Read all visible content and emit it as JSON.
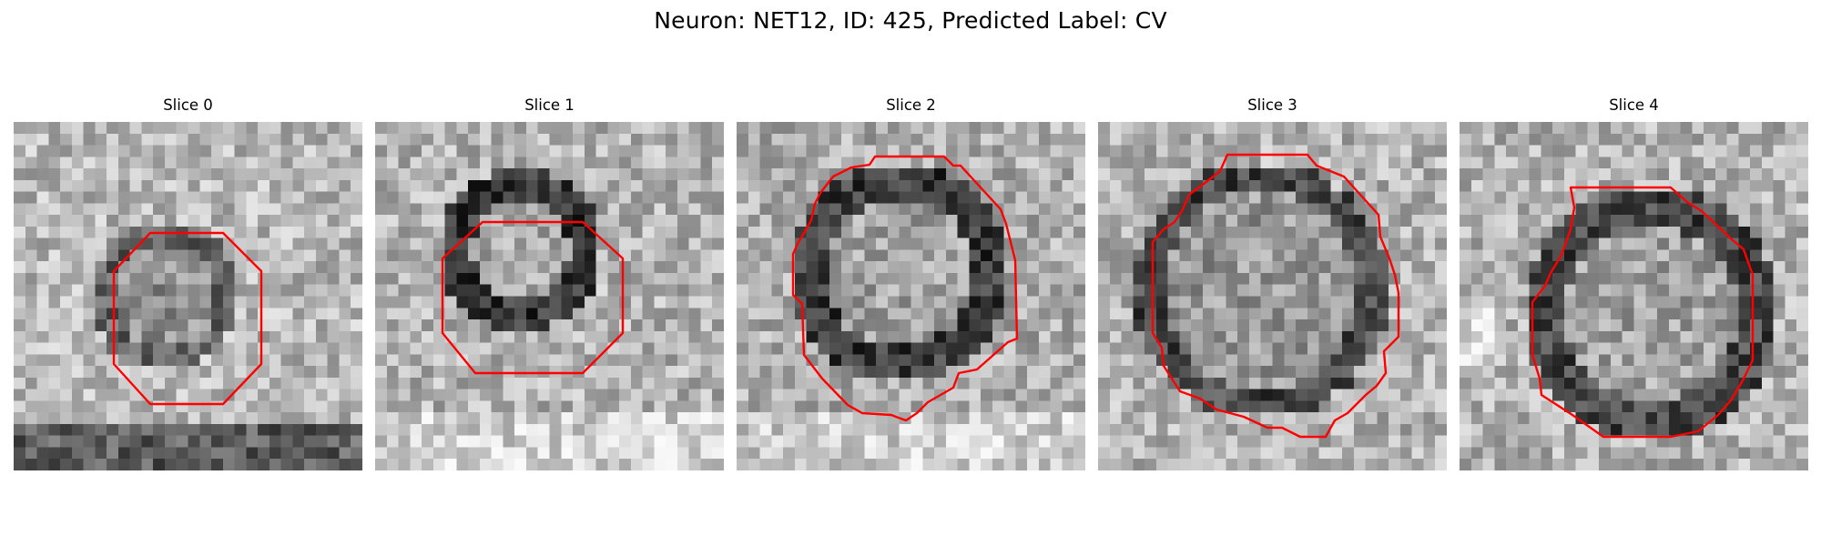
{
  "title": "Neuron: NET12, ID: 425, Predicted Label: CV",
  "contour_color": "#ff0000",
  "slices": [
    {
      "label": "Slice 0",
      "variant": "small-octagon"
    },
    {
      "label": "Slice 1",
      "variant": "wide-octagon"
    },
    {
      "label": "Slice 2",
      "variant": "irregular"
    },
    {
      "label": "Slice 3",
      "variant": "irregular-large"
    },
    {
      "label": "Slice 4",
      "variant": "irregular-wide"
    }
  ]
}
